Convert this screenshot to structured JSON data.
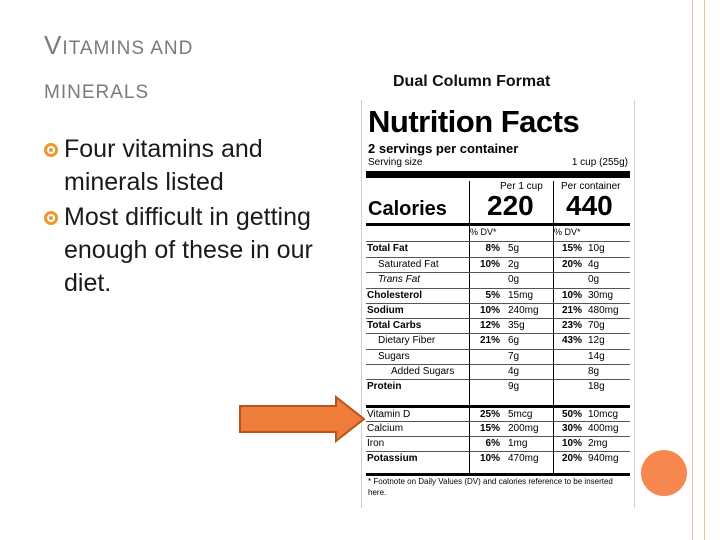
{
  "slide": {
    "title_line1_cap": "V",
    "title_line1_rest": "ITAMINS AND",
    "title_line2": "MINERALS",
    "bullets": [
      "Four vitamins and minerals listed",
      "Most difficult in getting enough of these in our diet."
    ],
    "colors": {
      "accent": "#f6874f",
      "bullet": "#e89a2c",
      "line": "#f2b9a5",
      "arrow": "#ef7d3a"
    }
  },
  "label": {
    "format_heading": "Dual Column Format",
    "title": "Nutrition Facts",
    "servings": "2 servings per container",
    "serving_size_label": "Serving size",
    "serving_size_value": "1 cup (255g)",
    "col1_head": "Per 1 cup",
    "col2_head": "Per container",
    "calories_label": "Calories",
    "calories_1": "220",
    "calories_2": "440",
    "dv_head_1": "% DV*",
    "dv_head_2": "% DV*",
    "rows": [
      {
        "name": "Total Fat",
        "pct1": "8%",
        "amt1": "5g",
        "pct2": "15%",
        "amt2": "10g"
      },
      {
        "name": "Saturated Fat",
        "pct1": "10%",
        "amt1": "2g",
        "pct2": "20%",
        "amt2": "4g"
      },
      {
        "name": "Trans Fat",
        "pct1": "",
        "amt1": "0g",
        "pct2": "",
        "amt2": "0g"
      },
      {
        "name": "Cholesterol",
        "pct1": "5%",
        "amt1": "15mg",
        "pct2": "10%",
        "amt2": "30mg"
      },
      {
        "name": "Sodium",
        "pct1": "10%",
        "amt1": "240mg",
        "pct2": "21%",
        "amt2": "480mg"
      },
      {
        "name": "Total Carbs",
        "pct1": "12%",
        "amt1": "35g",
        "pct2": "23%",
        "amt2": "70g"
      },
      {
        "name": "Dietary Fiber",
        "pct1": "21%",
        "amt1": "6g",
        "pct2": "43%",
        "amt2": "12g"
      },
      {
        "name": "Sugars",
        "pct1": "",
        "amt1": "7g",
        "pct2": "",
        "amt2": "14g"
      },
      {
        "name": "Added Sugars",
        "pct1": "",
        "amt1": "4g",
        "pct2": "",
        "amt2": "8g"
      },
      {
        "name": "Protein",
        "pct1": "",
        "amt1": "9g",
        "pct2": "",
        "amt2": "18g"
      },
      {
        "name": "Vitamin D",
        "pct1": "25%",
        "amt1": "5mcg",
        "pct2": "50%",
        "amt2": "10mcg"
      },
      {
        "name": "Calcium",
        "pct1": "15%",
        "amt1": "200mg",
        "pct2": "30%",
        "amt2": "400mg"
      },
      {
        "name": "Iron",
        "pct1": "6%",
        "amt1": "1mg",
        "pct2": "10%",
        "amt2": "2mg"
      },
      {
        "name": "Potassium",
        "pct1": "10%",
        "amt1": "470mg",
        "pct2": "20%",
        "amt2": "940mg"
      }
    ],
    "footnote": "* Footnote on Daily Values (DV) and calories reference to be inserted here."
  }
}
